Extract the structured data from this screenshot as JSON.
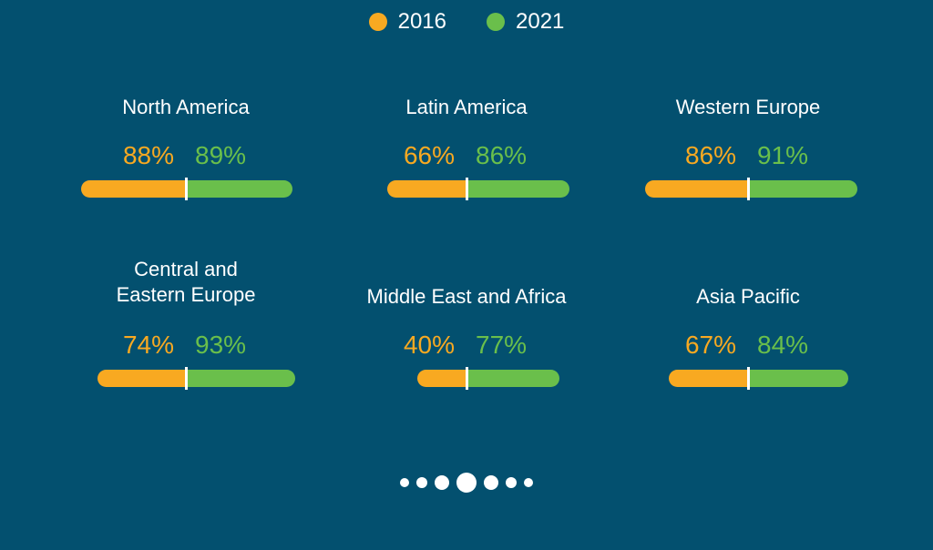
{
  "legend": [
    {
      "label": "2016",
      "color": "#f8a921"
    },
    {
      "label": "2021",
      "color": "#6abf4b"
    }
  ],
  "chart_data": {
    "type": "bar",
    "series": [
      {
        "name": "2016",
        "color": "#f8a921"
      },
      {
        "name": "2021",
        "color": "#6abf4b"
      }
    ],
    "regions": [
      {
        "name": "North America",
        "v2016": 88,
        "v2021": 89,
        "label2016": "88%",
        "label2021": "89%"
      },
      {
        "name": "Latin America",
        "v2016": 66,
        "v2021": 86,
        "label2016": "66%",
        "label2021": "86%"
      },
      {
        "name": "Western Europe",
        "v2016": 86,
        "v2021": 91,
        "label2016": "86%",
        "label2021": "91%"
      },
      {
        "name": "Central and\nEastern Europe",
        "v2016": 74,
        "v2021": 93,
        "label2016": "74%",
        "label2021": "93%"
      },
      {
        "name": "Middle East and Africa",
        "v2016": 40,
        "v2021": 77,
        "label2016": "40%",
        "label2021": "77%"
      },
      {
        "name": "Asia Pacific",
        "v2016": 67,
        "v2021": 84,
        "label2016": "67%",
        "label2021": "84%"
      }
    ]
  },
  "pager": {
    "count": 7,
    "active_index": 3
  }
}
